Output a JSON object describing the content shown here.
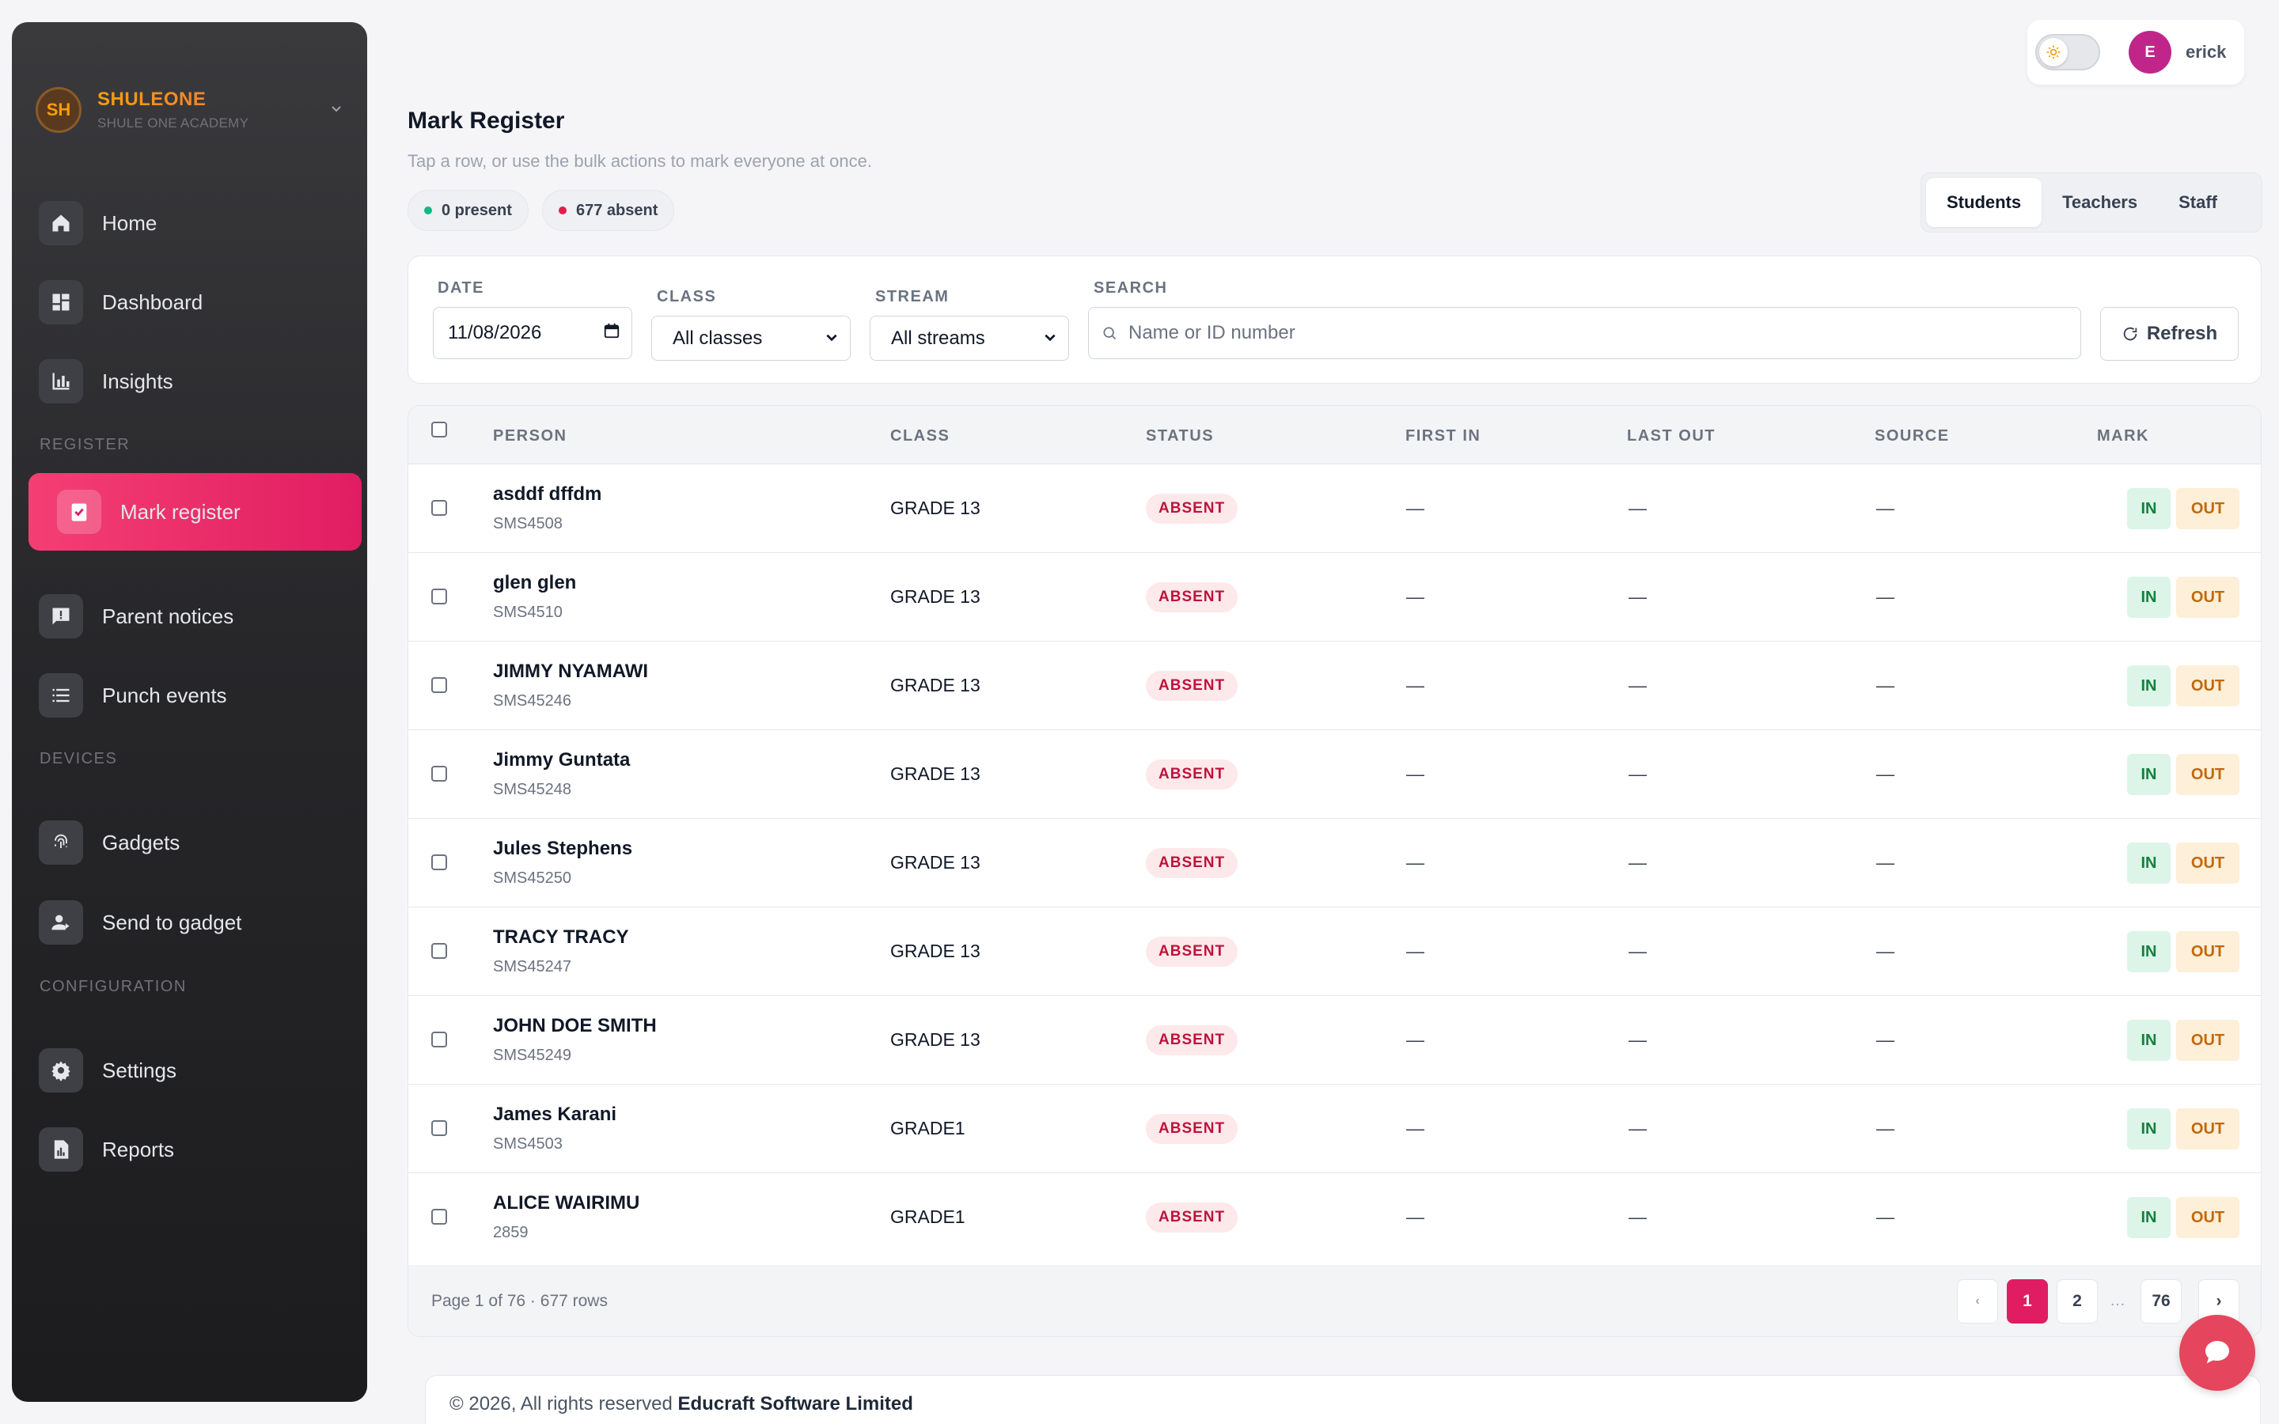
{
  "brand": {
    "initials": "SH",
    "name": "SHULEONE",
    "subtitle": "SHULE ONE ACADEMY"
  },
  "sidebar": {
    "items": [
      {
        "label": "Home",
        "icon": "home-icon"
      },
      {
        "label": "Dashboard",
        "icon": "dashboard-icon"
      },
      {
        "label": "Insights",
        "icon": "bar-chart-icon"
      }
    ],
    "register_section": "REGISTER",
    "register_items": [
      {
        "label": "Mark register",
        "icon": "clipboard-check-icon",
        "active": true
      },
      {
        "label": "Parent notices",
        "icon": "message-alert-icon"
      },
      {
        "label": "Punch events",
        "icon": "list-icon"
      }
    ],
    "devices_section": "DEVICES",
    "devices_items": [
      {
        "label": "Gadgets",
        "icon": "fingerprint-icon"
      },
      {
        "label": "Send to gadget",
        "icon": "user-send-icon"
      }
    ],
    "config_section": "CONFIGURATION",
    "config_items": [
      {
        "label": "Settings",
        "icon": "gear-icon"
      },
      {
        "label": "Reports",
        "icon": "report-icon"
      }
    ]
  },
  "topbar": {
    "user_initial": "E",
    "user_name": "erick",
    "theme_toggle": "light"
  },
  "header": {
    "title": "Mark Register",
    "subtitle": "Tap a row, or use the bulk actions to mark everyone at once.",
    "present_label": "0 present",
    "absent_label": "677 absent"
  },
  "tabs": [
    "Students",
    "Teachers",
    "Staff"
  ],
  "filters": {
    "date_label": "DATE",
    "date_value": "11/08/2026",
    "class_label": "CLASS",
    "class_value": "All classes",
    "stream_label": "STREAM",
    "stream_value": "All streams",
    "search_label": "SEARCH",
    "search_placeholder": "Name or ID number",
    "refresh_label": "Refresh"
  },
  "table": {
    "columns": {
      "person": "PERSON",
      "class": "CLASS",
      "status": "STATUS",
      "first_in": "FIRST IN",
      "last_out": "LAST OUT",
      "source": "SOURCE",
      "mark": "MARK"
    },
    "rows": [
      {
        "name": "asddf dffdm",
        "id": "SMS4508",
        "class": "GRADE 13",
        "status": "ABSENT",
        "first_in": "—",
        "last_out": "—",
        "source": "—"
      },
      {
        "name": "glen glen",
        "id": "SMS4510",
        "class": "GRADE 13",
        "status": "ABSENT",
        "first_in": "—",
        "last_out": "—",
        "source": "—"
      },
      {
        "name": "JIMMY NYAMAWI",
        "id": "SMS45246",
        "class": "GRADE 13",
        "status": "ABSENT",
        "first_in": "—",
        "last_out": "—",
        "source": "—"
      },
      {
        "name": "Jimmy Guntata",
        "id": "SMS45248",
        "class": "GRADE 13",
        "status": "ABSENT",
        "first_in": "—",
        "last_out": "—",
        "source": "—"
      },
      {
        "name": "Jules Stephens",
        "id": "SMS45250",
        "class": "GRADE 13",
        "status": "ABSENT",
        "first_in": "—",
        "last_out": "—",
        "source": "—"
      },
      {
        "name": "TRACY TRACY",
        "id": "SMS45247",
        "class": "GRADE 13",
        "status": "ABSENT",
        "first_in": "—",
        "last_out": "—",
        "source": "—"
      },
      {
        "name": "JOHN DOE SMITH",
        "id": "SMS45249",
        "class": "GRADE 13",
        "status": "ABSENT",
        "first_in": "—",
        "last_out": "—",
        "source": "—"
      },
      {
        "name": "James Karani",
        "id": "SMS4503",
        "class": "GRADE1",
        "status": "ABSENT",
        "first_in": "—",
        "last_out": "—",
        "source": "—"
      },
      {
        "name": "ALICE WAIRIMU",
        "id": "2859",
        "class": "GRADE1",
        "status": "ABSENT",
        "first_in": "—",
        "last_out": "—",
        "source": "—"
      }
    ],
    "in_label": "IN",
    "out_label": "OUT"
  },
  "pagination": {
    "info": "Page 1 of 76 · 677 rows",
    "prev": "‹",
    "next": "›",
    "pages": [
      "1",
      "2",
      "76"
    ],
    "ellipsis": "…",
    "current": "1"
  },
  "footer": {
    "copyright": "© 2026, All rights reserved",
    "company": "Educraft Software Limited"
  },
  "colors": {
    "accent": "#e11d62",
    "absent": "#be123c",
    "present": "#10b981",
    "in": "#15803d",
    "out": "#c2680a"
  }
}
